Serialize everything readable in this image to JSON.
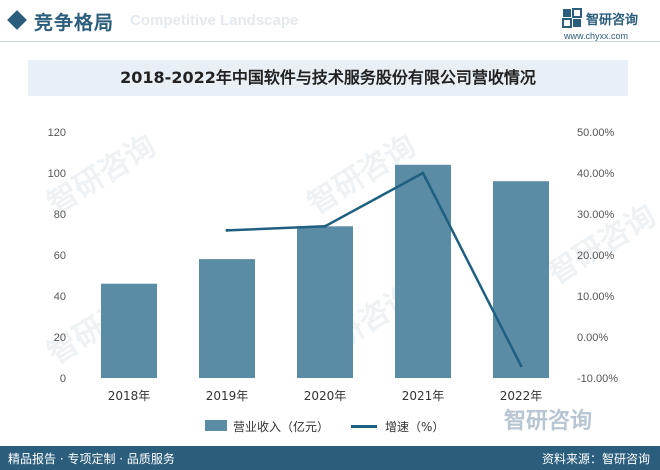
{
  "header": {
    "title": "竞争格局",
    "subtitle": "Competitive Landscape"
  },
  "brand": {
    "name": "智研咨询",
    "url": "www.chyxx.com",
    "color": "#2b5d7d"
  },
  "chart_data": {
    "type": "bar",
    "title": "2018-2022年中国软件与技术服务股份有限公司营收情况",
    "categories": [
      "2018年",
      "2019年",
      "2020年",
      "2021年",
      "2022年"
    ],
    "series": [
      {
        "name": "营业收入（亿元）",
        "type": "bar",
        "axis": "left",
        "color": "#5b8ca6",
        "values": [
          46,
          58,
          74,
          104,
          96
        ]
      },
      {
        "name": "增速（%）",
        "type": "line",
        "axis": "right",
        "color": "#1f5f80",
        "values": [
          null,
          26.0,
          27.0,
          40.0,
          -7.0
        ]
      }
    ],
    "left_axis": {
      "ylim": [
        0,
        120
      ],
      "ticks": [
        "0",
        "20",
        "40",
        "60",
        "80",
        "100",
        "120"
      ]
    },
    "right_axis": {
      "ylim": [
        -10,
        50
      ],
      "ticks": [
        "-10.00%",
        "0.00%",
        "10.00%",
        "20.00%",
        "30.00%",
        "40.00%",
        "50.00%"
      ]
    },
    "grid": false,
    "legend": "bottom"
  },
  "legend": {
    "bar_label": "营业收入（亿元）",
    "line_label": "增速（%）"
  },
  "footer": {
    "left": "精品报告 · 专项定制 · 品质服务",
    "right": "资料来源：智研咨询",
    "logo_text": "智研咨询"
  }
}
